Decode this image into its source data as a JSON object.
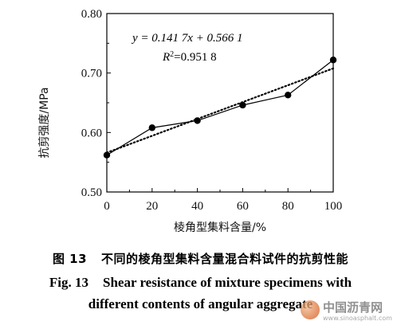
{
  "chart_data": {
    "type": "scatter",
    "x": [
      0,
      20,
      40,
      60,
      80,
      100
    ],
    "y": [
      0.562,
      0.608,
      0.62,
      0.646,
      0.663,
      0.722
    ],
    "trendline": {
      "slope": 0.1417,
      "intercept": 0.5661,
      "x_range": [
        0,
        100
      ]
    },
    "xlabel": "棱角型集料含量/%",
    "ylabel": "抗剪强度/MPa",
    "xlim": [
      0,
      100
    ],
    "ylim": [
      0.5,
      0.8
    ],
    "x_ticks": [
      "0",
      "20",
      "40",
      "60",
      "80",
      "100"
    ],
    "y_ticks": [
      "0.50",
      "0.60",
      "0.70",
      "0.80"
    ],
    "equation": "y = 0.141 7x + 0.566 1",
    "r2_label": "R",
    "r2_exp": "2",
    "r2_value": "=0.951 8",
    "grid": false,
    "legend": "none",
    "colors": {
      "series": "#000000",
      "trend": "#000000"
    }
  },
  "caption": {
    "cn_num": "图 13",
    "cn_text": "不同的棱角型集料含量混合料试件的抗剪性能",
    "en_num": "Fig. 13",
    "en_line1": "Shear resistance of mixture specimens with",
    "en_line2": "different contents of angular aggregate"
  },
  "watermark": {
    "title": "中国沥青网",
    "url": "www.sinoasphalt.com",
    "icon": "globe-logo-icon"
  }
}
